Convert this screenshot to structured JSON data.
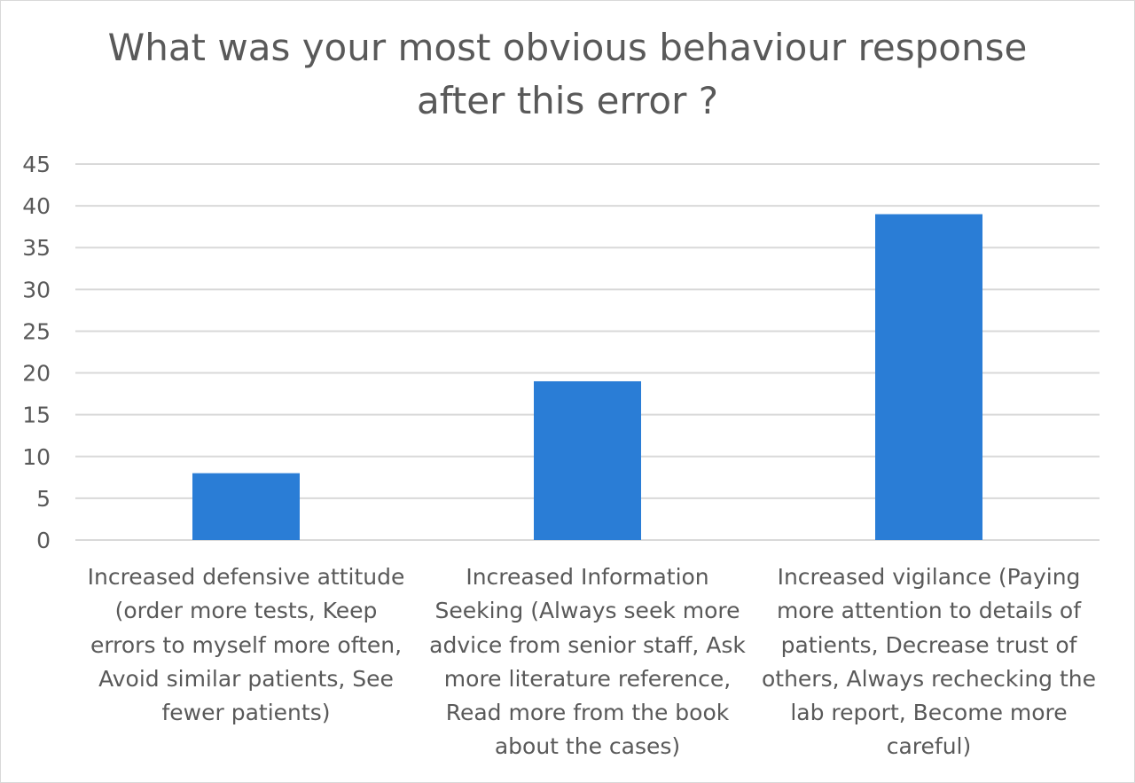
{
  "chart_data": {
    "type": "bar",
    "title_lines": [
      "What was your most obvious behaviour response",
      "after this error ?"
    ],
    "categories": [
      "Increased defensive attitude (order more tests, Keep errors to myself more often, Avoid similar patients, See fewer patients)",
      "Increased Information Seeking (Always seek more advice from senior staff, Ask more literature reference, Read more from the book about the cases)",
      "Increased vigilance (Paying more attention to details of patients, Decrease trust of others, Always rechecking the lab report, Become more careful)"
    ],
    "category_lines": [
      [
        "Increased defensive attitude",
        "(order more tests, Keep",
        "errors to myself more often,",
        "Avoid similar patients, See",
        "fewer patients)"
      ],
      [
        "Increased Information",
        "Seeking (Always seek more",
        "advice from senior staff, Ask",
        "more literature reference,",
        "Read more from the book",
        "about the cases)"
      ],
      [
        "Increased vigilance (Paying",
        "more attention to details of",
        "patients, Decrease trust of",
        "others, Always rechecking the",
        "lab report, Become more",
        "careful)"
      ]
    ],
    "values": [
      8,
      19,
      39
    ],
    "ylim": [
      0,
      45
    ],
    "yticks": [
      "0",
      "5",
      "10",
      "15",
      "20",
      "25",
      "30",
      "35",
      "40",
      "45"
    ],
    "grid": true,
    "legend": "none",
    "bar_color": "#2a7dd6",
    "grid_color": "#d9d9d9",
    "text_color": "#595959"
  }
}
